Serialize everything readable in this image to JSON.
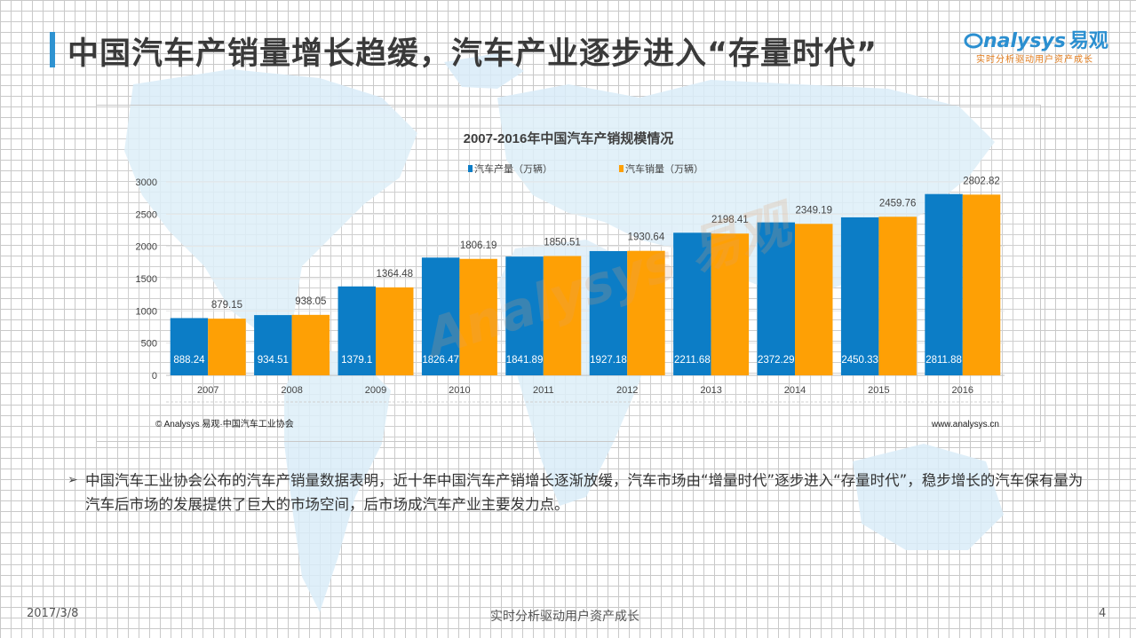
{
  "header": {
    "title": "中国汽车产销量增长趋缓，汽车产业逐步进入“存量时代”",
    "logo_text": "nalysys",
    "logo_cn": "易观",
    "logo_sub": "实时分析驱动用户资产成长"
  },
  "chart_data": {
    "type": "bar",
    "title": "2007-2016年中国汽车产销规模情况",
    "categories": [
      "2007",
      "2008",
      "2009",
      "2010",
      "2011",
      "2012",
      "2013",
      "2014",
      "2015",
      "2016"
    ],
    "series": [
      {
        "name": "汽车产量（万辆）",
        "color": "#0c7dc6",
        "values": [
          888.24,
          934.51,
          1379.1,
          1826.47,
          1841.89,
          1927.18,
          2211.68,
          2372.29,
          2450.33,
          2811.88
        ],
        "labels": [
          "888.24",
          "934.51",
          "1379.1",
          "1826.47",
          "1841.89",
          "1927.18",
          "2211.68",
          "2372.29",
          "2450.33",
          "2811.88"
        ]
      },
      {
        "name": "汽车销量（万辆）",
        "color": "#fea005",
        "values": [
          879.15,
          938.05,
          1364.48,
          1806.19,
          1850.51,
          1930.64,
          2198.41,
          2349.19,
          2459.76,
          2802.82
        ],
        "labels": [
          "879.15",
          "938.05",
          "1364.48",
          "1806.19",
          "1850.51",
          "1930.64",
          "2198.41",
          "2349.19",
          "2459.76",
          "2802.82"
        ]
      }
    ],
    "ylim": [
      0,
      3000
    ],
    "yticks": [
      "0",
      "500",
      "1000",
      "1500",
      "2000",
      "2500",
      "3000"
    ],
    "legend": "top-center",
    "source_left": "© Analysys 易观·中国汽车工业协会",
    "source_right": "www.analysys.cn"
  },
  "watermark": "Analysys 易观",
  "bullet": {
    "mark": "➢",
    "text": "中国汽车工业协会公布的汽车产销量数据表明，近十年中国汽车产销增长逐渐放缓，汽车市场由“增量时代”逐步进入“存量时代”，稳步增长的汽车保有量为汽车后市场的发展提供了巨大的市场空间，后市场成汽车产业主要发力点。"
  },
  "footer": {
    "date": "2017/3/8",
    "slogan": "实时分析驱动用户资产成长",
    "page": "4"
  }
}
